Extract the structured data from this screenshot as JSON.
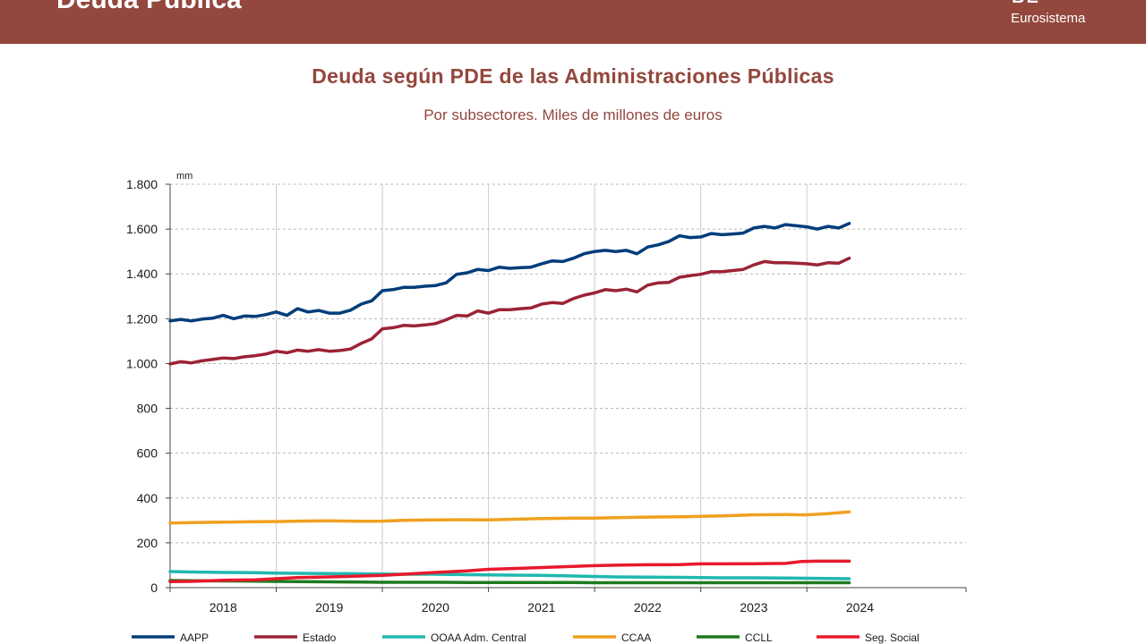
{
  "header": {
    "title": "Deuda Pública",
    "brand_mark": "BE",
    "brand_sub": "Eurosistema"
  },
  "colors": {
    "banner": "#93473d",
    "title": "#93473d"
  },
  "chart_data": {
    "type": "line",
    "title": "Deuda según PDE de las Administraciones Públicas",
    "subtitle": "Por subsectores. Miles de millones de euros",
    "unit_label": "mm",
    "xlabel": "",
    "ylabel": "",
    "ylim": [
      0,
      1800
    ],
    "yticks": [
      0,
      200,
      400,
      600,
      800,
      1000,
      1200,
      1400,
      1600,
      1800
    ],
    "ytick_labels": [
      "0",
      "200",
      "400",
      "600",
      "800",
      "1.000",
      "1.200",
      "1.400",
      "1.600",
      "1.800"
    ],
    "xlim": [
      2017.5,
      2025.0
    ],
    "year_categories": [
      "2018",
      "2019",
      "2020",
      "2021",
      "2022",
      "2023",
      "2024"
    ],
    "year_boundaries": [
      2018.5,
      2019.5,
      2020.5,
      2021.5,
      2022.5,
      2023.5
    ],
    "grid": true,
    "legend_position": "bottom",
    "series": [
      {
        "name": "AAPP",
        "color": "#003d7a",
        "x": [
          2017.5,
          2017.6,
          2017.7,
          2017.8,
          2017.9,
          2018.0,
          2018.1,
          2018.2,
          2018.3,
          2018.4,
          2018.5,
          2018.6,
          2018.7,
          2018.8,
          2018.9,
          2019.0,
          2019.1,
          2019.2,
          2019.3,
          2019.4,
          2019.5,
          2019.6,
          2019.7,
          2019.8,
          2019.9,
          2020.0,
          2020.1,
          2020.2,
          2020.3,
          2020.4,
          2020.5,
          2020.6,
          2020.7,
          2020.8,
          2020.9,
          2021.0,
          2021.1,
          2021.2,
          2021.3,
          2021.4,
          2021.5,
          2021.6,
          2021.7,
          2021.8,
          2021.9,
          2022.0,
          2022.1,
          2022.2,
          2022.3,
          2022.4,
          2022.5,
          2022.6,
          2022.7,
          2022.8,
          2022.9,
          2023.0,
          2023.1,
          2023.2,
          2023.3,
          2023.4,
          2023.5,
          2023.6,
          2023.7,
          2023.8,
          2023.9
        ],
        "values": [
          1190,
          1197,
          1190,
          1198,
          1202,
          1215,
          1200,
          1212,
          1210,
          1218,
          1230,
          1215,
          1245,
          1230,
          1237,
          1225,
          1225,
          1238,
          1265,
          1280,
          1325,
          1330,
          1340,
          1340,
          1345,
          1348,
          1360,
          1398,
          1405,
          1420,
          1415,
          1430,
          1425,
          1428,
          1430,
          1445,
          1458,
          1455,
          1470,
          1490,
          1500,
          1505,
          1500,
          1505,
          1490,
          1520,
          1530,
          1545,
          1570,
          1562,
          1565,
          1580,
          1575,
          1578,
          1582,
          1605,
          1612,
          1605,
          1620,
          1615,
          1610,
          1600,
          1612,
          1605,
          1625
        ]
      },
      {
        "name": "Estado",
        "color": "#9b2335",
        "x": [
          2017.5,
          2017.6,
          2017.7,
          2017.8,
          2017.9,
          2018.0,
          2018.1,
          2018.2,
          2018.3,
          2018.4,
          2018.5,
          2018.6,
          2018.7,
          2018.8,
          2018.9,
          2019.0,
          2019.1,
          2019.2,
          2019.3,
          2019.4,
          2019.5,
          2019.6,
          2019.7,
          2019.8,
          2019.9,
          2020.0,
          2020.1,
          2020.2,
          2020.3,
          2020.4,
          2020.5,
          2020.6,
          2020.7,
          2020.8,
          2020.9,
          2021.0,
          2021.1,
          2021.2,
          2021.3,
          2021.4,
          2021.5,
          2021.6,
          2021.7,
          2021.8,
          2021.9,
          2022.0,
          2022.1,
          2022.2,
          2022.3,
          2022.4,
          2022.5,
          2022.6,
          2022.7,
          2022.8,
          2022.9,
          2023.0,
          2023.1,
          2023.2,
          2023.3,
          2023.4,
          2023.5,
          2023.6,
          2023.7,
          2023.8,
          2023.9
        ],
        "values": [
          998,
          1008,
          1003,
          1012,
          1018,
          1025,
          1022,
          1030,
          1035,
          1042,
          1055,
          1048,
          1060,
          1055,
          1062,
          1055,
          1058,
          1065,
          1090,
          1110,
          1155,
          1160,
          1170,
          1168,
          1172,
          1178,
          1195,
          1215,
          1212,
          1235,
          1225,
          1240,
          1240,
          1245,
          1248,
          1265,
          1272,
          1268,
          1290,
          1305,
          1315,
          1330,
          1325,
          1332,
          1320,
          1350,
          1360,
          1362,
          1385,
          1392,
          1398,
          1410,
          1410,
          1415,
          1420,
          1440,
          1455,
          1450,
          1450,
          1448,
          1445,
          1440,
          1450,
          1448,
          1470
        ]
      },
      {
        "name": "OOAA Adm. Central",
        "color": "#1fb8b0",
        "x": [
          2017.5,
          2017.7,
          2018.0,
          2018.3,
          2018.5,
          2018.7,
          2019.0,
          2019.3,
          2019.5,
          2019.7,
          2020.0,
          2020.3,
          2020.5,
          2020.7,
          2021.0,
          2021.3,
          2021.5,
          2021.7,
          2022.0,
          2022.3,
          2022.5,
          2022.7,
          2023.0,
          2023.3,
          2023.5,
          2023.7,
          2023.9
        ],
        "values": [
          72,
          70,
          68,
          67,
          65,
          64,
          63,
          62,
          61,
          60,
          60,
          58,
          57,
          56,
          55,
          52,
          50,
          48,
          47,
          46,
          45,
          44,
          44,
          43,
          42,
          41,
          40
        ]
      },
      {
        "name": "CCAA",
        "color": "#f0a020",
        "x": [
          2017.5,
          2017.7,
          2018.0,
          2018.3,
          2018.5,
          2018.7,
          2019.0,
          2019.3,
          2019.5,
          2019.7,
          2020.0,
          2020.3,
          2020.5,
          2020.7,
          2021.0,
          2021.3,
          2021.5,
          2021.7,
          2022.0,
          2022.3,
          2022.5,
          2022.7,
          2023.0,
          2023.3,
          2023.5,
          2023.7,
          2023.9
        ],
        "values": [
          288,
          290,
          292,
          294,
          295,
          297,
          298,
          296,
          297,
          300,
          302,
          303,
          302,
          305,
          308,
          310,
          310,
          312,
          315,
          316,
          318,
          320,
          325,
          326,
          325,
          330,
          338
        ]
      },
      {
        "name": "CCLL",
        "color": "#1e7a1e",
        "x": [
          2017.5,
          2017.7,
          2018.0,
          2018.3,
          2018.5,
          2018.7,
          2019.0,
          2019.3,
          2019.5,
          2019.7,
          2020.0,
          2020.3,
          2020.5,
          2020.7,
          2021.0,
          2021.3,
          2021.5,
          2021.7,
          2022.0,
          2022.3,
          2022.5,
          2022.7,
          2023.0,
          2023.3,
          2023.5,
          2023.7,
          2023.9
        ],
        "values": [
          32,
          31,
          30,
          29,
          28,
          27,
          26,
          25,
          24,
          24,
          24,
          23,
          23,
          23,
          23,
          23,
          22,
          22,
          22,
          22,
          22,
          22,
          22,
          22,
          22,
          22,
          22
        ]
      },
      {
        "name": "Seg. Social",
        "color": "#e8192c",
        "x": [
          2017.5,
          2017.7,
          2018.0,
          2018.3,
          2018.5,
          2018.7,
          2019.0,
          2019.3,
          2019.5,
          2019.7,
          2020.0,
          2020.3,
          2020.5,
          2020.7,
          2021.0,
          2021.3,
          2021.5,
          2021.7,
          2022.0,
          2022.3,
          2022.5,
          2022.7,
          2023.0,
          2023.3,
          2023.45,
          2023.6,
          2023.9
        ],
        "values": [
          27,
          28,
          33,
          35,
          40,
          45,
          48,
          52,
          55,
          60,
          68,
          75,
          82,
          85,
          90,
          95,
          98,
          100,
          102,
          103,
          106,
          106,
          107,
          108,
          117,
          118,
          118
        ]
      }
    ]
  }
}
